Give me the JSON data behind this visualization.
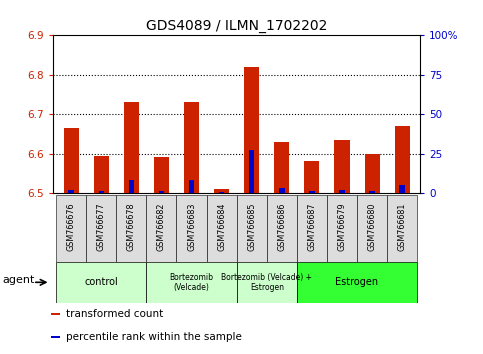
{
  "title": "GDS4089 / ILMN_1702202",
  "samples": [
    "GSM766676",
    "GSM766677",
    "GSM766678",
    "GSM766682",
    "GSM766683",
    "GSM766684",
    "GSM766685",
    "GSM766686",
    "GSM766687",
    "GSM766679",
    "GSM766680",
    "GSM766681"
  ],
  "red_values": [
    6.665,
    6.595,
    6.73,
    6.59,
    6.73,
    6.51,
    6.82,
    6.63,
    6.58,
    6.635,
    6.6,
    6.67
  ],
  "blue_values": [
    2.0,
    1.0,
    8.0,
    1.0,
    8.0,
    0.5,
    27.0,
    3.0,
    1.0,
    2.0,
    1.0,
    5.0
  ],
  "ylim_left": [
    6.5,
    6.9
  ],
  "ylim_right": [
    0,
    100
  ],
  "yticks_left": [
    6.5,
    6.6,
    6.7,
    6.8,
    6.9
  ],
  "yticks_right": [
    0,
    25,
    50,
    75,
    100
  ],
  "ytick_labels_right": [
    "0",
    "25",
    "50",
    "75",
    "100%"
  ],
  "groups": [
    {
      "label": "control",
      "start": 0,
      "end": 3,
      "color": "#ccffcc"
    },
    {
      "label": "Bortezomib\n(Velcade)",
      "start": 3,
      "end": 6,
      "color": "#ccffcc"
    },
    {
      "label": "Bortezomib (Velcade) +\nEstrogen",
      "start": 6,
      "end": 8,
      "color": "#ccffcc"
    },
    {
      "label": "Estrogen",
      "start": 8,
      "end": 12,
      "color": "#33ff33"
    }
  ],
  "base_value": 6.5,
  "bg_color": "#ffffff",
  "bar_color_red": "#cc2200",
  "bar_color_blue": "#0000cc",
  "label_color_red": "#cc2200",
  "label_color_blue": "#0000cc",
  "agent_label": "agent",
  "legend_items": [
    {
      "color": "#cc2200",
      "label": "transformed count"
    },
    {
      "color": "#0000cc",
      "label": "percentile rank within the sample"
    }
  ],
  "sample_cell_color": "#dddddd",
  "grid_yticks": [
    6.6,
    6.7,
    6.8
  ]
}
